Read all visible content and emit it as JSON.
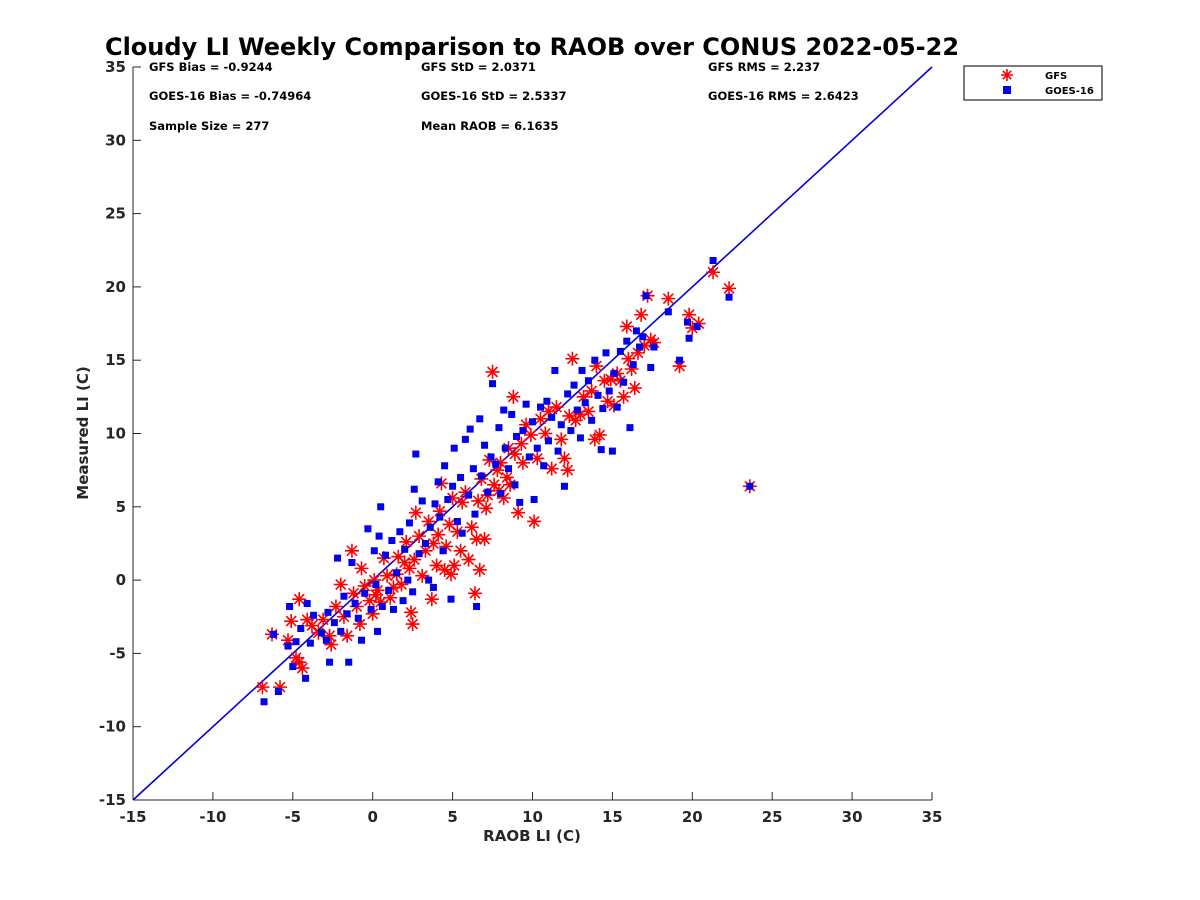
{
  "chart_data": {
    "type": "scatter",
    "title": "Cloudy LI Weekly Comparison to RAOB over CONUS 2022-05-22",
    "xlabel": "RAOB LI (C)",
    "ylabel": "Measured LI (C)",
    "xlim": [
      -15,
      35
    ],
    "ylim": [
      -15,
      35
    ],
    "xticks": [
      -15,
      -10,
      -5,
      0,
      5,
      10,
      15,
      20,
      25,
      30,
      35
    ],
    "yticks": [
      -15,
      -10,
      -5,
      0,
      5,
      10,
      15,
      20,
      25,
      30,
      35
    ],
    "xtick_labels": [
      "-15",
      "-10",
      "-5",
      "0",
      "5",
      "10",
      "15",
      "20",
      "25",
      "30",
      "35"
    ],
    "ytick_labels": [
      "-15",
      "-10",
      "-5",
      "0",
      "5",
      "10",
      "15",
      "20",
      "25",
      "30",
      "35"
    ],
    "grid": false,
    "legend_position": "top-right, outside plot",
    "reference_line": {
      "type": "1:1",
      "color": "#0000dd"
    },
    "stats_text": {
      "row1": [
        "GFS Bias = -0.9244",
        "GFS StD = 2.0371",
        "GFS RMS = 2.237"
      ],
      "row2": [
        "GOES-16 Bias = -0.74964",
        "GOES-16 StD = 2.5337",
        "GOES-16 RMS = 2.6423"
      ],
      "row3": [
        "Sample Size = 277",
        "Mean RAOB = 6.1635"
      ]
    },
    "series": [
      {
        "name": "GFS",
        "marker": "asterisk",
        "color": "#ff0000",
        "points": [
          [
            -6.9,
            -7.3
          ],
          [
            -5.8,
            -7.3
          ],
          [
            -6.3,
            -3.7
          ],
          [
            -5.3,
            -4.1
          ],
          [
            -5.1,
            -2.8
          ],
          [
            -4.8,
            -5.3
          ],
          [
            -4.6,
            -5.6
          ],
          [
            -4.4,
            -6.0
          ],
          [
            -4.6,
            -1.3
          ],
          [
            -4.1,
            -2.7
          ],
          [
            -3.8,
            -3.1
          ],
          [
            -3.4,
            -3.6
          ],
          [
            -3.1,
            -2.7
          ],
          [
            -2.7,
            -3.8
          ],
          [
            -2.6,
            -4.4
          ],
          [
            -2.3,
            -1.8
          ],
          [
            -2.0,
            -0.3
          ],
          [
            -1.8,
            -2.5
          ],
          [
            -1.6,
            -3.8
          ],
          [
            -1.3,
            2.0
          ],
          [
            -1.2,
            -0.9
          ],
          [
            -1.0,
            -1.8
          ],
          [
            -0.8,
            -3.0
          ],
          [
            -0.7,
            0.8
          ],
          [
            -0.5,
            -0.4
          ],
          [
            -0.2,
            -1.4
          ],
          [
            0.0,
            -2.3
          ],
          [
            0.1,
            0.0
          ],
          [
            0.2,
            -1.0
          ],
          [
            0.3,
            -0.7
          ],
          [
            0.5,
            -1.5
          ],
          [
            0.7,
            1.5
          ],
          [
            0.9,
            0.3
          ],
          [
            1.1,
            -1.2
          ],
          [
            1.3,
            -0.5
          ],
          [
            1.5,
            0.4
          ],
          [
            1.6,
            1.6
          ],
          [
            1.8,
            -0.3
          ],
          [
            2.0,
            1.2
          ],
          [
            2.1,
            2.6
          ],
          [
            2.3,
            0.8
          ],
          [
            2.4,
            -2.2
          ],
          [
            2.5,
            -3.0
          ],
          [
            2.6,
            1.4
          ],
          [
            2.7,
            4.6
          ],
          [
            2.9,
            3.0
          ],
          [
            3.1,
            0.3
          ],
          [
            3.3,
            2.0
          ],
          [
            3.5,
            4.0
          ],
          [
            3.7,
            -1.3
          ],
          [
            3.8,
            2.5
          ],
          [
            4.0,
            1.0
          ],
          [
            4.1,
            3.1
          ],
          [
            4.2,
            4.7
          ],
          [
            4.3,
            6.6
          ],
          [
            4.5,
            0.7
          ],
          [
            4.6,
            2.3
          ],
          [
            4.8,
            3.8
          ],
          [
            4.9,
            0.4
          ],
          [
            5.0,
            5.6
          ],
          [
            5.1,
            1.0
          ],
          [
            5.3,
            3.3
          ],
          [
            5.5,
            2.0
          ],
          [
            5.6,
            5.3
          ],
          [
            5.8,
            6.0
          ],
          [
            6.0,
            1.4
          ],
          [
            6.2,
            3.6
          ],
          [
            6.4,
            -0.9
          ],
          [
            6.5,
            2.8
          ],
          [
            6.6,
            5.4
          ],
          [
            6.7,
            0.7
          ],
          [
            6.8,
            6.9
          ],
          [
            7.0,
            2.8
          ],
          [
            7.1,
            4.9
          ],
          [
            7.2,
            5.8
          ],
          [
            7.3,
            8.2
          ],
          [
            7.5,
            14.2
          ],
          [
            7.6,
            6.5
          ],
          [
            7.8,
            7.5
          ],
          [
            7.9,
            6.1
          ],
          [
            8.0,
            8.0
          ],
          [
            8.2,
            5.6
          ],
          [
            8.4,
            7.0
          ],
          [
            8.5,
            9.0
          ],
          [
            8.6,
            6.5
          ],
          [
            8.8,
            12.5
          ],
          [
            8.9,
            8.6
          ],
          [
            9.1,
            4.6
          ],
          [
            9.3,
            9.3
          ],
          [
            9.4,
            8.0
          ],
          [
            9.6,
            10.6
          ],
          [
            9.9,
            9.9
          ],
          [
            10.1,
            4.0
          ],
          [
            10.3,
            8.3
          ],
          [
            10.5,
            11.0
          ],
          [
            10.8,
            10.0
          ],
          [
            11.0,
            11.5
          ],
          [
            11.2,
            7.6
          ],
          [
            11.5,
            11.8
          ],
          [
            11.8,
            9.6
          ],
          [
            12.0,
            8.3
          ],
          [
            12.2,
            7.5
          ],
          [
            12.3,
            11.2
          ],
          [
            12.5,
            15.1
          ],
          [
            12.7,
            10.9
          ],
          [
            13.0,
            11.3
          ],
          [
            13.2,
            12.5
          ],
          [
            13.5,
            11.5
          ],
          [
            13.7,
            12.9
          ],
          [
            13.9,
            9.6
          ],
          [
            14.0,
            14.6
          ],
          [
            14.2,
            9.9
          ],
          [
            14.5,
            13.6
          ],
          [
            14.7,
            12.2
          ],
          [
            14.9,
            13.7
          ],
          [
            15.1,
            11.9
          ],
          [
            15.3,
            14.1
          ],
          [
            15.5,
            13.6
          ],
          [
            15.7,
            12.5
          ],
          [
            15.9,
            17.3
          ],
          [
            16.0,
            15.1
          ],
          [
            16.2,
            14.4
          ],
          [
            16.4,
            13.1
          ],
          [
            16.6,
            15.5
          ],
          [
            16.8,
            18.1
          ],
          [
            17.0,
            16.0
          ],
          [
            17.2,
            19.4
          ],
          [
            17.4,
            16.4
          ],
          [
            17.6,
            16.2
          ],
          [
            18.5,
            19.2
          ],
          [
            19.2,
            14.6
          ],
          [
            19.8,
            18.1
          ],
          [
            20.0,
            17.2
          ],
          [
            20.4,
            17.5
          ],
          [
            21.3,
            21.0
          ],
          [
            22.3,
            19.9
          ],
          [
            23.6,
            6.4
          ]
        ]
      },
      {
        "name": "GOES-16",
        "marker": "square",
        "color": "#0000ee",
        "points": [
          [
            -6.8,
            -8.3
          ],
          [
            -5.9,
            -7.6
          ],
          [
            -6.2,
            -3.7
          ],
          [
            -5.3,
            -4.5
          ],
          [
            -5.2,
            -1.8
          ],
          [
            -5.0,
            -5.9
          ],
          [
            -4.8,
            -4.2
          ],
          [
            -4.5,
            -3.3
          ],
          [
            -4.2,
            -6.7
          ],
          [
            -4.1,
            -1.6
          ],
          [
            -3.9,
            -4.3
          ],
          [
            -3.7,
            -2.4
          ],
          [
            -3.2,
            -3.6
          ],
          [
            -2.9,
            -4.1
          ],
          [
            -2.8,
            -2.2
          ],
          [
            -2.7,
            -5.6
          ],
          [
            -2.4,
            -2.9
          ],
          [
            -2.2,
            1.5
          ],
          [
            -2.0,
            -3.5
          ],
          [
            -1.8,
            -1.1
          ],
          [
            -1.6,
            -2.3
          ],
          [
            -1.5,
            -5.6
          ],
          [
            -1.3,
            1.2
          ],
          [
            -1.1,
            -1.6
          ],
          [
            -0.9,
            -2.6
          ],
          [
            -0.7,
            -4.1
          ],
          [
            -0.5,
            -0.9
          ],
          [
            -0.3,
            3.5
          ],
          [
            -0.1,
            -2.0
          ],
          [
            0.1,
            2.0
          ],
          [
            0.2,
            -0.3
          ],
          [
            0.3,
            -3.5
          ],
          [
            0.4,
            3.0
          ],
          [
            0.5,
            5.0
          ],
          [
            0.6,
            -1.8
          ],
          [
            0.8,
            1.7
          ],
          [
            1.0,
            -0.7
          ],
          [
            1.2,
            2.7
          ],
          [
            1.3,
            -2.0
          ],
          [
            1.5,
            0.5
          ],
          [
            1.7,
            3.3
          ],
          [
            1.9,
            -1.4
          ],
          [
            2.0,
            2.1
          ],
          [
            2.2,
            0.0
          ],
          [
            2.3,
            3.9
          ],
          [
            2.5,
            -0.8
          ],
          [
            2.6,
            6.2
          ],
          [
            2.7,
            8.6
          ],
          [
            2.9,
            1.8
          ],
          [
            3.1,
            5.4
          ],
          [
            3.3,
            2.5
          ],
          [
            3.5,
            0.0
          ],
          [
            3.6,
            3.6
          ],
          [
            3.8,
            -0.5
          ],
          [
            3.9,
            5.2
          ],
          [
            4.1,
            6.7
          ],
          [
            4.2,
            4.3
          ],
          [
            4.4,
            2.0
          ],
          [
            4.5,
            7.8
          ],
          [
            4.7,
            5.5
          ],
          [
            4.9,
            -1.3
          ],
          [
            5.0,
            6.4
          ],
          [
            5.1,
            9.0
          ],
          [
            5.3,
            4.0
          ],
          [
            5.5,
            7.0
          ],
          [
            5.6,
            3.2
          ],
          [
            5.8,
            9.6
          ],
          [
            6.0,
            5.8
          ],
          [
            6.1,
            10.3
          ],
          [
            6.3,
            7.6
          ],
          [
            6.4,
            4.5
          ],
          [
            6.5,
            -1.8
          ],
          [
            6.7,
            11.0
          ],
          [
            6.8,
            7.1
          ],
          [
            7.0,
            9.2
          ],
          [
            7.2,
            6.0
          ],
          [
            7.4,
            8.4
          ],
          [
            7.5,
            13.4
          ],
          [
            7.7,
            7.9
          ],
          [
            7.9,
            10.4
          ],
          [
            8.0,
            5.9
          ],
          [
            8.2,
            11.6
          ],
          [
            8.3,
            9.0
          ],
          [
            8.5,
            7.6
          ],
          [
            8.7,
            11.3
          ],
          [
            8.9,
            6.5
          ],
          [
            9.0,
            9.8
          ],
          [
            9.2,
            5.3
          ],
          [
            9.4,
            10.2
          ],
          [
            9.6,
            12.0
          ],
          [
            9.8,
            8.4
          ],
          [
            10.0,
            10.8
          ],
          [
            10.1,
            5.5
          ],
          [
            10.3,
            9.0
          ],
          [
            10.5,
            11.8
          ],
          [
            10.7,
            7.8
          ],
          [
            10.9,
            12.2
          ],
          [
            11.0,
            9.5
          ],
          [
            11.2,
            11.1
          ],
          [
            11.4,
            14.3
          ],
          [
            11.6,
            8.8
          ],
          [
            11.8,
            10.6
          ],
          [
            12.0,
            6.4
          ],
          [
            12.2,
            12.7
          ],
          [
            12.4,
            10.2
          ],
          [
            12.6,
            13.3
          ],
          [
            12.8,
            11.6
          ],
          [
            13.0,
            9.7
          ],
          [
            13.1,
            14.3
          ],
          [
            13.3,
            12.1
          ],
          [
            13.5,
            13.6
          ],
          [
            13.7,
            10.9
          ],
          [
            13.9,
            15.0
          ],
          [
            14.1,
            12.6
          ],
          [
            14.3,
            8.9
          ],
          [
            14.4,
            11.7
          ],
          [
            14.6,
            15.5
          ],
          [
            14.8,
            12.9
          ],
          [
            15.0,
            8.8
          ],
          [
            15.1,
            14.1
          ],
          [
            15.3,
            11.8
          ],
          [
            15.5,
            15.6
          ],
          [
            15.7,
            13.5
          ],
          [
            15.9,
            16.3
          ],
          [
            16.1,
            10.4
          ],
          [
            16.3,
            14.7
          ],
          [
            16.5,
            17.0
          ],
          [
            16.7,
            15.9
          ],
          [
            16.9,
            16.6
          ],
          [
            17.1,
            19.4
          ],
          [
            17.4,
            14.5
          ],
          [
            17.6,
            15.9
          ],
          [
            18.5,
            18.3
          ],
          [
            19.2,
            15.0
          ],
          [
            19.7,
            17.6
          ],
          [
            19.8,
            16.5
          ],
          [
            20.3,
            17.3
          ],
          [
            21.3,
            21.8
          ],
          [
            22.3,
            19.3
          ],
          [
            23.6,
            6.4
          ]
        ]
      }
    ]
  },
  "legend": {
    "gfs_label": "GFS",
    "goes_label": "GOES-16"
  }
}
